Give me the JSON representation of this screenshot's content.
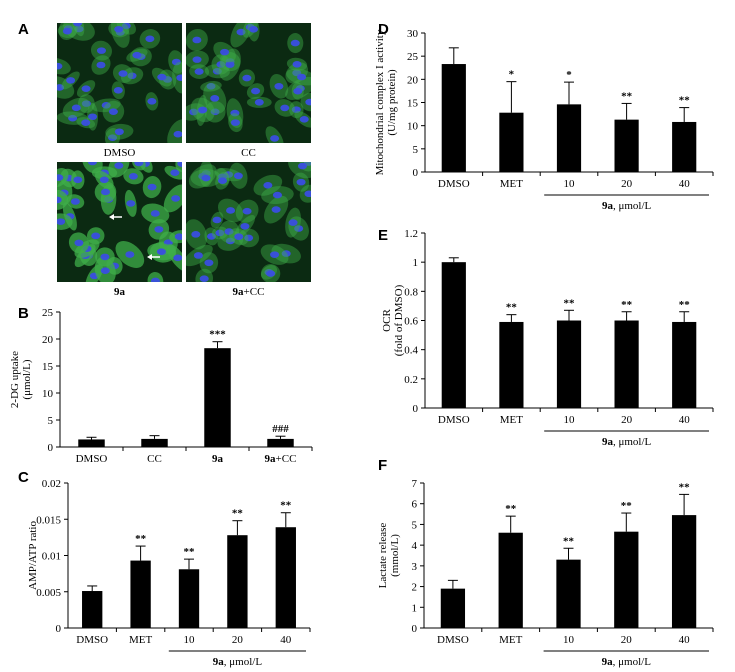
{
  "panel_a": {
    "letter": "A",
    "images": [
      {
        "label": "DMSO",
        "label_bold": "",
        "label_rest": ""
      },
      {
        "label": "CC",
        "label_bold": "",
        "label_rest": ""
      },
      {
        "label": "",
        "label_bold": "9a",
        "label_rest": ""
      },
      {
        "label": "",
        "label_bold": "9a",
        "label_rest": "+CC"
      }
    ],
    "colors": {
      "background": "#0b2a12",
      "nuclei": "#3a4ee0",
      "cytoplasm": "#3fae4a"
    }
  },
  "chart_data": [
    {
      "panel": "B",
      "type": "bar",
      "ylabel_lines": [
        "2-DG uptake",
        "(μmol/L)"
      ],
      "ylim": [
        0,
        25
      ],
      "yticks": [
        "0",
        "5",
        "10",
        "15",
        "20",
        "25"
      ],
      "categories": [
        {
          "bold": "",
          "text": "DMSO"
        },
        {
          "bold": "",
          "text": "CC"
        },
        {
          "bold": "9a",
          "text": ""
        },
        {
          "bold": "9a",
          "text": "+CC"
        }
      ],
      "values": [
        1.4,
        1.5,
        18.3,
        1.5
      ],
      "errors": [
        0.4,
        0.6,
        1.2,
        0.5
      ],
      "annotations": [
        "",
        "",
        "***",
        "###"
      ],
      "group_label": null
    },
    {
      "panel": "C",
      "type": "bar",
      "ylabel_lines": [
        "AMP/ATP ratio"
      ],
      "ylim": [
        0,
        0.02
      ],
      "yticks": [
        "0",
        "0.005",
        "0.01",
        "0.015",
        "0.02"
      ],
      "categories": [
        {
          "bold": "",
          "text": "DMSO"
        },
        {
          "bold": "",
          "text": "MET"
        },
        {
          "bold": "",
          "text": "10"
        },
        {
          "bold": "",
          "text": "20"
        },
        {
          "bold": "",
          "text": "40"
        }
      ],
      "values": [
        0.0051,
        0.0093,
        0.0081,
        0.0128,
        0.0139
      ],
      "errors": [
        0.0007,
        0.002,
        0.0014,
        0.002,
        0.002
      ],
      "annotations": [
        "",
        "**",
        "**",
        "**",
        "**"
      ],
      "group_label": {
        "bold": "9a",
        "text": ", μmol/L",
        "from": 2,
        "to": 4
      }
    },
    {
      "panel": "D",
      "type": "bar",
      "ylabel_lines": [
        "Mitochondrial complex I activity",
        "(U/mg protein)"
      ],
      "ylim": [
        0,
        30
      ],
      "yticks": [
        "0",
        "5",
        "10",
        "15",
        "20",
        "25",
        "30"
      ],
      "categories": [
        {
          "bold": "",
          "text": "DMSO"
        },
        {
          "bold": "",
          "text": "MET"
        },
        {
          "bold": "",
          "text": "10"
        },
        {
          "bold": "",
          "text": "20"
        },
        {
          "bold": "",
          "text": "40"
        }
      ],
      "values": [
        23.3,
        12.8,
        14.6,
        11.3,
        10.8
      ],
      "errors": [
        3.5,
        6.7,
        4.8,
        3.5,
        3.1
      ],
      "annotations": [
        "",
        "*",
        "*",
        "**",
        "**"
      ],
      "group_label": {
        "bold": "9a",
        "text": ", μmol/L",
        "from": 2,
        "to": 4
      }
    },
    {
      "panel": "E",
      "type": "bar",
      "ylabel_lines": [
        "OCR",
        "(fold of DMSO)"
      ],
      "ylim": [
        0,
        1.2
      ],
      "yticks": [
        "0",
        "0.2",
        "0.4",
        "0.6",
        "0.8",
        "1",
        "1.2"
      ],
      "categories": [
        {
          "bold": "",
          "text": "DMSO"
        },
        {
          "bold": "",
          "text": "MET"
        },
        {
          "bold": "",
          "text": "10"
        },
        {
          "bold": "",
          "text": "20"
        },
        {
          "bold": "",
          "text": "40"
        }
      ],
      "values": [
        1.0,
        0.59,
        0.6,
        0.6,
        0.59
      ],
      "errors": [
        0.03,
        0.05,
        0.07,
        0.06,
        0.07
      ],
      "annotations": [
        "",
        "**",
        "**",
        "**",
        "**"
      ],
      "group_label": {
        "bold": "9a",
        "text": ", μmol/L",
        "from": 2,
        "to": 4
      }
    },
    {
      "panel": "F",
      "type": "bar",
      "ylabel_lines": [
        "Lactate release",
        "(mmol/L)"
      ],
      "ylim": [
        0,
        7
      ],
      "yticks": [
        "0",
        "1",
        "2",
        "3",
        "4",
        "5",
        "6",
        "7"
      ],
      "categories": [
        {
          "bold": "",
          "text": "DMSO"
        },
        {
          "bold": "",
          "text": "MET"
        },
        {
          "bold": "",
          "text": "10"
        },
        {
          "bold": "",
          "text": "20"
        },
        {
          "bold": "",
          "text": "40"
        }
      ],
      "values": [
        1.9,
        4.6,
        3.3,
        4.65,
        5.45
      ],
      "errors": [
        0.4,
        0.8,
        0.55,
        0.9,
        1.0
      ],
      "annotations": [
        "",
        "**",
        "**",
        "**",
        "**"
      ],
      "group_label": {
        "bold": "9a",
        "text": ", μmol/L",
        "from": 2,
        "to": 4
      }
    }
  ]
}
